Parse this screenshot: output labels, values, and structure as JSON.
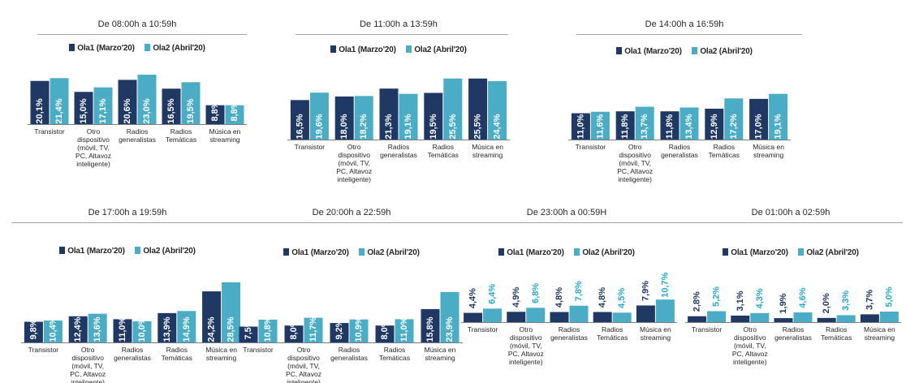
{
  "colors": {
    "ola1": "#1f3864",
    "ola2": "#4bacc6",
    "ola2_label": "#25a8c9",
    "axis": "#7f7f7f",
    "text": "#262626"
  },
  "chart_data": [
    {
      "type": "bar",
      "title": "De 08:00h a 10:59h",
      "categories": [
        [
          "Transistor"
        ],
        [
          "Otro",
          "dispositivo",
          "(móvil, TV,",
          "PC, Altavoz",
          "inteligente)"
        ],
        [
          "Radios",
          "generalistas"
        ],
        [
          "Radios",
          "Temáticas"
        ],
        [
          "Música en",
          "streaming"
        ]
      ],
      "series": [
        {
          "name": "Ola1 (Marzo'20)",
          "values": [
            20.1,
            15.0,
            20.6,
            16.5,
            8.8
          ],
          "labels": [
            "20,1%",
            "15,0%",
            "20,6%",
            "16,5%",
            "8,8%"
          ]
        },
        {
          "name": "Ola2 (Abril'20)",
          "values": [
            21.4,
            17.1,
            23.0,
            19.5,
            8.8
          ],
          "labels": [
            "21,4%",
            "17,1%",
            "23,0%",
            "19,5%",
            "8,8%"
          ]
        }
      ],
      "label_style": "inside",
      "ylim": [
        0,
        30
      ]
    },
    {
      "type": "bar",
      "title": "De 11:00h a 13:59h",
      "categories": [
        [
          "Transistor"
        ],
        [
          "Otro",
          "dispositivo",
          "(móvil, TV,",
          "PC, Altavoz",
          "inteligente)"
        ],
        [
          "Radios",
          "generalistas"
        ],
        [
          "Radios",
          "Temáticas"
        ],
        [
          "Música en",
          "streaming"
        ]
      ],
      "series": [
        {
          "name": "Ola1 (Marzo'20)",
          "values": [
            16.5,
            18.0,
            21.3,
            19.5,
            25.5
          ],
          "labels": [
            "16,5%",
            "18,0%",
            "21,3%",
            "19,5%",
            "25,5%"
          ]
        },
        {
          "name": "Ola2 (Abril'20)",
          "values": [
            19.6,
            18.2,
            19.1,
            25.5,
            24.4
          ],
          "labels": [
            "19,6%",
            "18,2%",
            "19,1%",
            "25,5%",
            "24,4%"
          ]
        }
      ],
      "label_style": "inside",
      "ylim": [
        0,
        30
      ]
    },
    {
      "type": "bar",
      "title": "De 14:00h a 16:59h",
      "categories": [
        [
          "Transistor"
        ],
        [
          "Otro",
          "dispositivo",
          "(móvil, TV,",
          "PC, Altavoz",
          "inteligente)"
        ],
        [
          "Radios",
          "generalistas"
        ],
        [
          "Radios",
          "Temáticas"
        ],
        [
          "Música en",
          "streaming"
        ]
      ],
      "series": [
        {
          "name": "Ola1 (Marzo'20)",
          "values": [
            11.0,
            11.8,
            11.8,
            12.9,
            17.0
          ],
          "labels": [
            "11,0%",
            "11,8%",
            "11,8%",
            "12,9%",
            "17,0%"
          ]
        },
        {
          "name": "Ola2 (Abril'20)",
          "values": [
            11.6,
            13.7,
            13.4,
            17.2,
            19.1
          ],
          "labels": [
            "11,6%",
            "13,7%",
            "13,4%",
            "17,2%",
            "19,1%"
          ]
        }
      ],
      "label_style": "inside",
      "ylim": [
        0,
        30
      ]
    },
    {
      "type": "bar",
      "title": "De 17:00h a 19:59h",
      "categories": [
        [
          "Transistor"
        ],
        [
          "Otro",
          "dispositivo",
          "(móvil, TV,",
          "PC, Altavoz",
          "inteligente)"
        ],
        [
          "Radios",
          "generalistas"
        ],
        [
          "Radios",
          "Temáticas"
        ],
        [
          "Música en",
          "streaming"
        ]
      ],
      "series": [
        {
          "name": "Ola1 (Marzo'20)",
          "values": [
            9.8,
            12.4,
            11.0,
            13.9,
            24.2
          ],
          "labels": [
            "9,8%",
            "12,4%",
            "11,0%",
            "13,9%",
            "24,2%"
          ]
        },
        {
          "name": "Ola2 (Abril'20)",
          "values": [
            10.4,
            13.6,
            10.0,
            14.9,
            28.5
          ],
          "labels": [
            "10,4%",
            "13,6%",
            "10,0%",
            "14,9%",
            "28,5%"
          ]
        }
      ],
      "label_style": "inside",
      "ylim": [
        0,
        30
      ]
    },
    {
      "type": "bar",
      "title": "De 20:00h a 22:59h",
      "categories": [
        [
          "Transistor"
        ],
        [
          "Otro",
          "dispositivo",
          "(móvil, TV,",
          "PC, Altavoz",
          "inteligente)"
        ],
        [
          "Radios",
          "generalistas"
        ],
        [
          "Radios",
          "Temáticas"
        ],
        [
          "Música en",
          "streaming"
        ]
      ],
      "series": [
        {
          "name": "Ola1 (Marzo'20)",
          "values": [
            7.5,
            8.0,
            9.2,
            8.0,
            15.8
          ],
          "labels": [
            "7,5%",
            "8,0%",
            "9,2%",
            "8,0%",
            "15,8%"
          ]
        },
        {
          "name": "Ola2 (Abril'20)",
          "values": [
            10.8,
            11.7,
            10.9,
            11.0,
            23.9
          ],
          "labels": [
            "10,8%",
            "11,7%",
            "10,9%",
            "11,0%",
            "23,9%"
          ]
        }
      ],
      "label_style": "inside",
      "ylim": [
        0,
        30
      ]
    },
    {
      "type": "bar",
      "title": "De 23:00h a 00:59H",
      "categories": [
        [
          "Transistor"
        ],
        [
          "Otro",
          "dispositivo",
          "(móvil, TV,",
          "PC, Altavoz",
          "inteligente)"
        ],
        [
          "Radios",
          "generalistas"
        ],
        [
          "Radios",
          "Temáticas"
        ],
        [
          "Música en",
          "streaming"
        ]
      ],
      "series": [
        {
          "name": "Ola1 (Marzo'20)",
          "values": [
            4.4,
            4.9,
            4.8,
            4.8,
            7.9
          ],
          "labels": [
            "4,4%",
            "4,9%",
            "4,8%",
            "4,8%",
            "7,9%"
          ]
        },
        {
          "name": "Ola2 (Abril'20)",
          "values": [
            6.4,
            6.8,
            7.8,
            4.5,
            10.7
          ],
          "labels": [
            "6,4%",
            "6,8%",
            "7,8%",
            "4,5%",
            "10,7%"
          ]
        }
      ],
      "label_style": "above",
      "ylim": [
        0,
        30
      ]
    },
    {
      "type": "bar",
      "title": "De 01:00h a 02:59h",
      "categories": [
        [
          "Transistor"
        ],
        [
          "Otro",
          "dispositivo",
          "(móvil, TV,",
          "PC, Altavoz",
          "inteligente)"
        ],
        [
          "Radios",
          "generalistas"
        ],
        [
          "Radios",
          "Temáticas"
        ],
        [
          "Música en",
          "streaming"
        ]
      ],
      "series": [
        {
          "name": "Ola1 (Marzo'20)",
          "values": [
            2.8,
            3.1,
            1.9,
            2.0,
            3.7
          ],
          "labels": [
            "2,8%",
            "3,1%",
            "1,9%",
            "2,0%",
            "3,7%"
          ]
        },
        {
          "name": "Ola2 (Abril'20)",
          "values": [
            5.2,
            4.3,
            4.6,
            3.3,
            5.0
          ],
          "labels": [
            "5,2%",
            "4,3%",
            "4,6%",
            "3,3%",
            "5,0%"
          ]
        }
      ],
      "label_style": "above",
      "ylim": [
        0,
        30
      ]
    }
  ]
}
